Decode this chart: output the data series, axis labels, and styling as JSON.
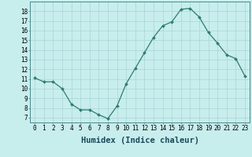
{
  "x": [
    0,
    1,
    2,
    3,
    4,
    5,
    6,
    7,
    8,
    9,
    10,
    11,
    12,
    13,
    14,
    15,
    16,
    17,
    18,
    19,
    20,
    21,
    22,
    23
  ],
  "y": [
    11.1,
    10.7,
    10.7,
    10.0,
    8.4,
    7.8,
    7.8,
    7.3,
    6.9,
    8.2,
    10.5,
    12.1,
    13.7,
    15.3,
    16.5,
    16.9,
    18.2,
    18.3,
    17.4,
    15.8,
    14.7,
    13.5,
    13.1,
    11.3
  ],
  "line_color": "#2e7d6e",
  "marker": "D",
  "marker_size": 2.0,
  "bg_color": "#c8eded",
  "grid_color": "#a8d5d5",
  "xlabel": "Humidex (Indice chaleur)",
  "xlim": [
    -0.5,
    23.5
  ],
  "ylim": [
    6.5,
    19.0
  ],
  "yticks": [
    7,
    8,
    9,
    10,
    11,
    12,
    13,
    14,
    15,
    16,
    17,
    18
  ],
  "xticks": [
    0,
    1,
    2,
    3,
    4,
    5,
    6,
    7,
    8,
    9,
    10,
    11,
    12,
    13,
    14,
    15,
    16,
    17,
    18,
    19,
    20,
    21,
    22,
    23
  ],
  "xlabel_fontsize": 7.5,
  "tick_fontsize": 5.5
}
